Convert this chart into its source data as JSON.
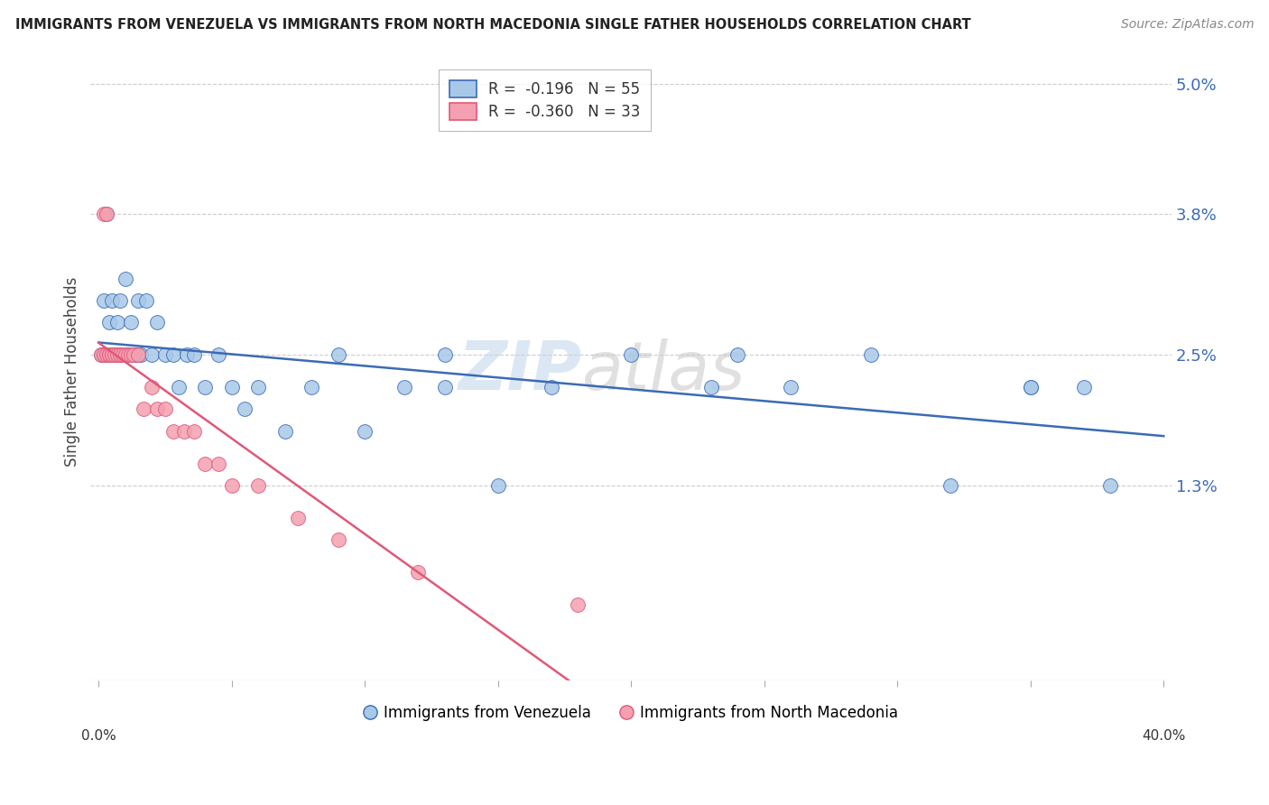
{
  "title": "IMMIGRANTS FROM VENEZUELA VS IMMIGRANTS FROM NORTH MACEDONIA SINGLE FATHER HOUSEHOLDS CORRELATION CHART",
  "source": "Source: ZipAtlas.com",
  "ylabel": "Single Father Households",
  "y_ticks_pct": [
    1.3,
    2.5,
    3.8,
    5.0
  ],
  "y_tick_labels": [
    "1.3%",
    "2.5%",
    "3.8%",
    "5.0%"
  ],
  "xlim": [
    0.0,
    0.4
  ],
  "ylim": [
    -0.005,
    0.052
  ],
  "color_venezuela": "#A8C8E8",
  "color_macedonia": "#F4A0B0",
  "line_color_venezuela": "#3B6BB5",
  "line_color_macedonia": "#E05878",
  "watermark_zip": "ZIP",
  "watermark_atlas": "atlas",
  "legend1_label": "R =  -0.196   N = 55",
  "legend2_label": "R =  -0.360   N = 33",
  "bottom_legend1": "Immigrants from Venezuela",
  "bottom_legend2": "Immigrants from North Macedonia",
  "scatter_venezuela_x": [
    0.001,
    0.002,
    0.002,
    0.003,
    0.003,
    0.004,
    0.004,
    0.005,
    0.005,
    0.006,
    0.006,
    0.007,
    0.007,
    0.008,
    0.008,
    0.009,
    0.01,
    0.011,
    0.012,
    0.013,
    0.014,
    0.015,
    0.016,
    0.018,
    0.02,
    0.022,
    0.025,
    0.028,
    0.03,
    0.033,
    0.036,
    0.04,
    0.045,
    0.05,
    0.055,
    0.06,
    0.07,
    0.08,
    0.09,
    0.1,
    0.115,
    0.13,
    0.15,
    0.17,
    0.2,
    0.23,
    0.26,
    0.29,
    0.32,
    0.35,
    0.37,
    0.13,
    0.24,
    0.35,
    0.38
  ],
  "scatter_venezuela_y": [
    0.025,
    0.03,
    0.025,
    0.025,
    0.038,
    0.025,
    0.028,
    0.025,
    0.03,
    0.025,
    0.025,
    0.028,
    0.025,
    0.025,
    0.03,
    0.025,
    0.032,
    0.025,
    0.028,
    0.025,
    0.025,
    0.03,
    0.025,
    0.03,
    0.025,
    0.028,
    0.025,
    0.025,
    0.022,
    0.025,
    0.025,
    0.022,
    0.025,
    0.022,
    0.02,
    0.022,
    0.018,
    0.022,
    0.025,
    0.018,
    0.022,
    0.025,
    0.013,
    0.022,
    0.025,
    0.022,
    0.022,
    0.025,
    0.013,
    0.022,
    0.022,
    0.022,
    0.025,
    0.022,
    0.013
  ],
  "scatter_macedonia_x": [
    0.001,
    0.002,
    0.002,
    0.003,
    0.003,
    0.004,
    0.004,
    0.005,
    0.005,
    0.006,
    0.007,
    0.008,
    0.009,
    0.01,
    0.011,
    0.012,
    0.013,
    0.015,
    0.017,
    0.02,
    0.022,
    0.025,
    0.028,
    0.032,
    0.036,
    0.04,
    0.045,
    0.05,
    0.06,
    0.075,
    0.09,
    0.12,
    0.18
  ],
  "scatter_macedonia_y": [
    0.025,
    0.038,
    0.025,
    0.025,
    0.038,
    0.025,
    0.025,
    0.025,
    0.025,
    0.025,
    0.025,
    0.025,
    0.025,
    0.025,
    0.025,
    0.025,
    0.025,
    0.025,
    0.02,
    0.022,
    0.02,
    0.02,
    0.018,
    0.018,
    0.018,
    0.015,
    0.015,
    0.013,
    0.013,
    0.01,
    0.008,
    0.005,
    0.002
  ]
}
